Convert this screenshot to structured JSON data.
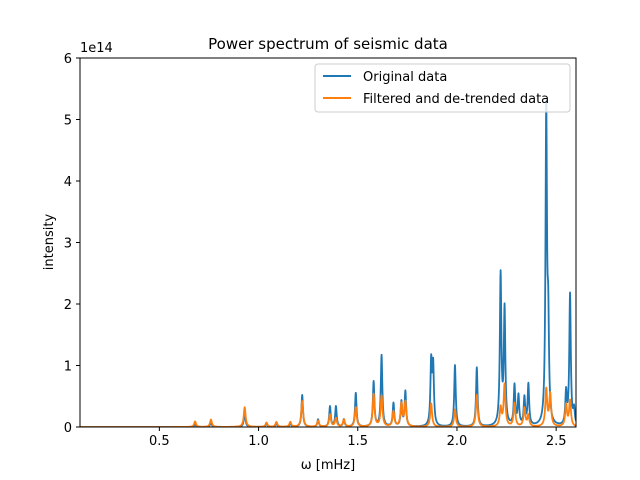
{
  "chart_data": {
    "type": "line",
    "title": "Power spectrum of seismic data",
    "xlabel": "ω [mHz]",
    "ylabel": "intensity",
    "y_offset_label": "1e14",
    "xlim": [
      0.1,
      2.6
    ],
    "ylim": [
      0,
      6
    ],
    "x_ticks": [
      0.5,
      1.0,
      1.5,
      2.0,
      2.5
    ],
    "x_tick_labels": [
      "0.5",
      "1.0",
      "1.5",
      "2.0",
      "2.5"
    ],
    "y_ticks": [
      0,
      1,
      2,
      3,
      4,
      5,
      6
    ],
    "y_tick_labels": [
      "0",
      "1",
      "2",
      "3",
      "4",
      "5",
      "6"
    ],
    "grid": false,
    "legend_position": "top-right",
    "series": [
      {
        "name": "Original data",
        "color": "#1f77b4",
        "peaks": [
          [
            0.68,
            0.05
          ],
          [
            0.76,
            0.08
          ],
          [
            0.93,
            0.25
          ],
          [
            1.04,
            0.06
          ],
          [
            1.09,
            0.06
          ],
          [
            1.16,
            0.06
          ],
          [
            1.22,
            0.52
          ],
          [
            1.3,
            0.12
          ],
          [
            1.36,
            0.33
          ],
          [
            1.39,
            0.33
          ],
          [
            1.43,
            0.12
          ],
          [
            1.49,
            0.55
          ],
          [
            1.58,
            0.73
          ],
          [
            1.62,
            1.16
          ],
          [
            1.68,
            0.38
          ],
          [
            1.72,
            0.4
          ],
          [
            1.74,
            0.57
          ],
          [
            1.87,
            1.02
          ],
          [
            1.88,
            0.95
          ],
          [
            1.99,
            1.0
          ],
          [
            2.1,
            0.96
          ],
          [
            2.22,
            2.45
          ],
          [
            2.24,
            1.88
          ],
          [
            2.29,
            0.65
          ],
          [
            2.31,
            0.48
          ],
          [
            2.34,
            0.45
          ],
          [
            2.36,
            0.67
          ],
          [
            2.45,
            5.05
          ],
          [
            2.46,
            1.44
          ],
          [
            2.55,
            0.53
          ],
          [
            2.57,
            2.14
          ],
          [
            2.59,
            0.25
          ]
        ]
      },
      {
        "name": "Filtered and de-trended data",
        "color": "#ff7f0e",
        "peaks": [
          [
            0.68,
            0.09
          ],
          [
            0.76,
            0.12
          ],
          [
            0.93,
            0.32
          ],
          [
            1.04,
            0.07
          ],
          [
            1.09,
            0.08
          ],
          [
            1.16,
            0.08
          ],
          [
            1.22,
            0.42
          ],
          [
            1.3,
            0.1
          ],
          [
            1.36,
            0.2
          ],
          [
            1.39,
            0.14
          ],
          [
            1.43,
            0.12
          ],
          [
            1.49,
            0.32
          ],
          [
            1.58,
            0.53
          ],
          [
            1.62,
            0.5
          ],
          [
            1.68,
            0.25
          ],
          [
            1.72,
            0.37
          ],
          [
            1.74,
            0.4
          ],
          [
            1.87,
            0.38
          ],
          [
            1.99,
            0.28
          ],
          [
            2.1,
            0.52
          ],
          [
            2.22,
            0.3
          ],
          [
            2.24,
            0.68
          ],
          [
            2.29,
            0.38
          ],
          [
            2.34,
            0.3
          ],
          [
            2.36,
            0.18
          ],
          [
            2.45,
            0.6
          ],
          [
            2.47,
            0.52
          ],
          [
            2.55,
            0.35
          ],
          [
            2.57,
            0.42
          ]
        ]
      }
    ]
  }
}
